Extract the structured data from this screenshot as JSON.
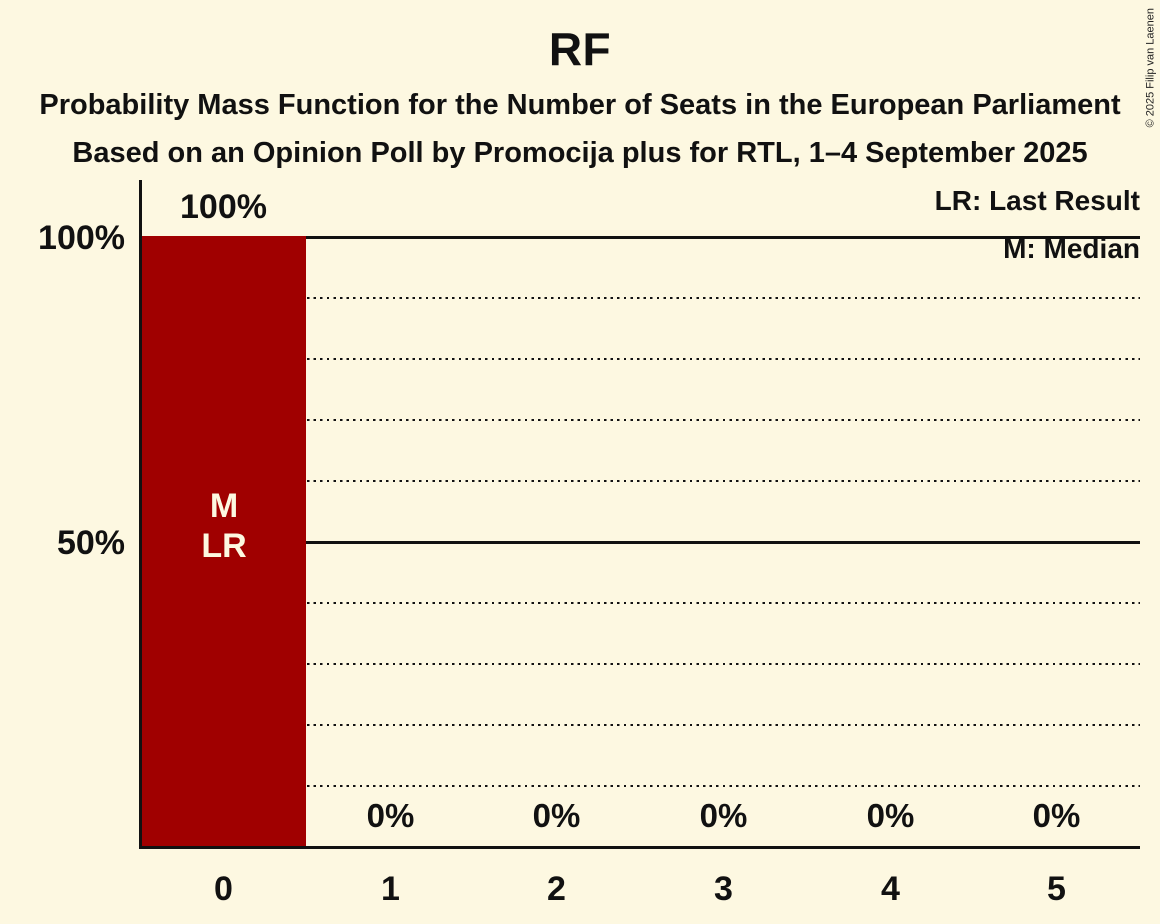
{
  "chart_data": {
    "type": "bar",
    "title": "RF",
    "subtitle_line1": "Probability Mass Function for the Number of Seats in the European Parliament",
    "subtitle_line2": "Based on an Opinion Poll by Promocija plus for RTL, 1–4 September 2025",
    "categories": [
      "0",
      "1",
      "2",
      "3",
      "4",
      "5"
    ],
    "values": [
      100,
      0,
      0,
      0,
      0,
      0
    ],
    "value_labels": [
      "100%",
      "0%",
      "0%",
      "0%",
      "0%",
      "0%"
    ],
    "bar_annotation_lines": [
      "M",
      "LR"
    ],
    "xlabel": "",
    "ylabel": "",
    "ylim": [
      0,
      100
    ],
    "y_ticks": [
      {
        "label": "100%",
        "value": 100
      },
      {
        "label": "50%",
        "value": 50
      }
    ],
    "solid_gridlines_percent": [
      100,
      50
    ],
    "dotted_gridlines_percent": [
      90,
      80,
      70,
      60,
      40,
      30,
      20,
      10
    ],
    "grid": "horizontal-only",
    "legend_position": "top-right",
    "legend": [
      {
        "label": "LR: Last Result"
      },
      {
        "label": "M: Median"
      }
    ],
    "copyright": "© 2025 Filip van Laenen",
    "colors": {
      "bar": "#A00000",
      "background": "#FDF8E1",
      "text": "#111111",
      "bar_text": "#FDF8E1"
    }
  }
}
